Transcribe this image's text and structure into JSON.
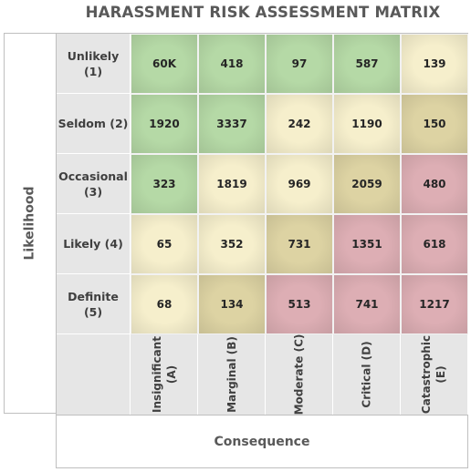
{
  "chart_data": {
    "type": "heatmap",
    "title": "HARASSMENT RISK ASSESSMENT MATRIX",
    "ylabel": "Likelihood",
    "xlabel": "Consequence",
    "rows": [
      "Unlikely (1)",
      "Seldom (2)",
      "Occasional\n(3)",
      "Likely (4)",
      "Definite (5)"
    ],
    "columns": [
      "Insignificant\n(A)",
      "Marginal (B)",
      "Moderate (C)",
      "Critical (D)",
      "Catastrophic\n(E)"
    ],
    "values": [
      [
        "60K",
        "418",
        "97",
        "587",
        "139"
      ],
      [
        "1920",
        "3337",
        "242",
        "1190",
        "150"
      ],
      [
        "323",
        "1819",
        "969",
        "2059",
        "480"
      ],
      [
        "65",
        "352",
        "731",
        "1351",
        "618"
      ],
      [
        "68",
        "134",
        "513",
        "741",
        "1217"
      ]
    ],
    "risk_levels": [
      [
        "low",
        "low",
        "low",
        "low",
        "moderate"
      ],
      [
        "low",
        "low",
        "moderate",
        "moderate",
        "high"
      ],
      [
        "low",
        "moderate",
        "moderate",
        "high",
        "extreme"
      ],
      [
        "moderate",
        "moderate",
        "high",
        "extreme",
        "extreme"
      ],
      [
        "moderate",
        "high",
        "extreme",
        "extreme",
        "extreme"
      ]
    ],
    "level_colors": {
      "low": "#b5d9a6",
      "moderate": "#f6efcc",
      "high": "#ddd3a3",
      "extreme": "#ddaeb4"
    },
    "grid": true
  }
}
